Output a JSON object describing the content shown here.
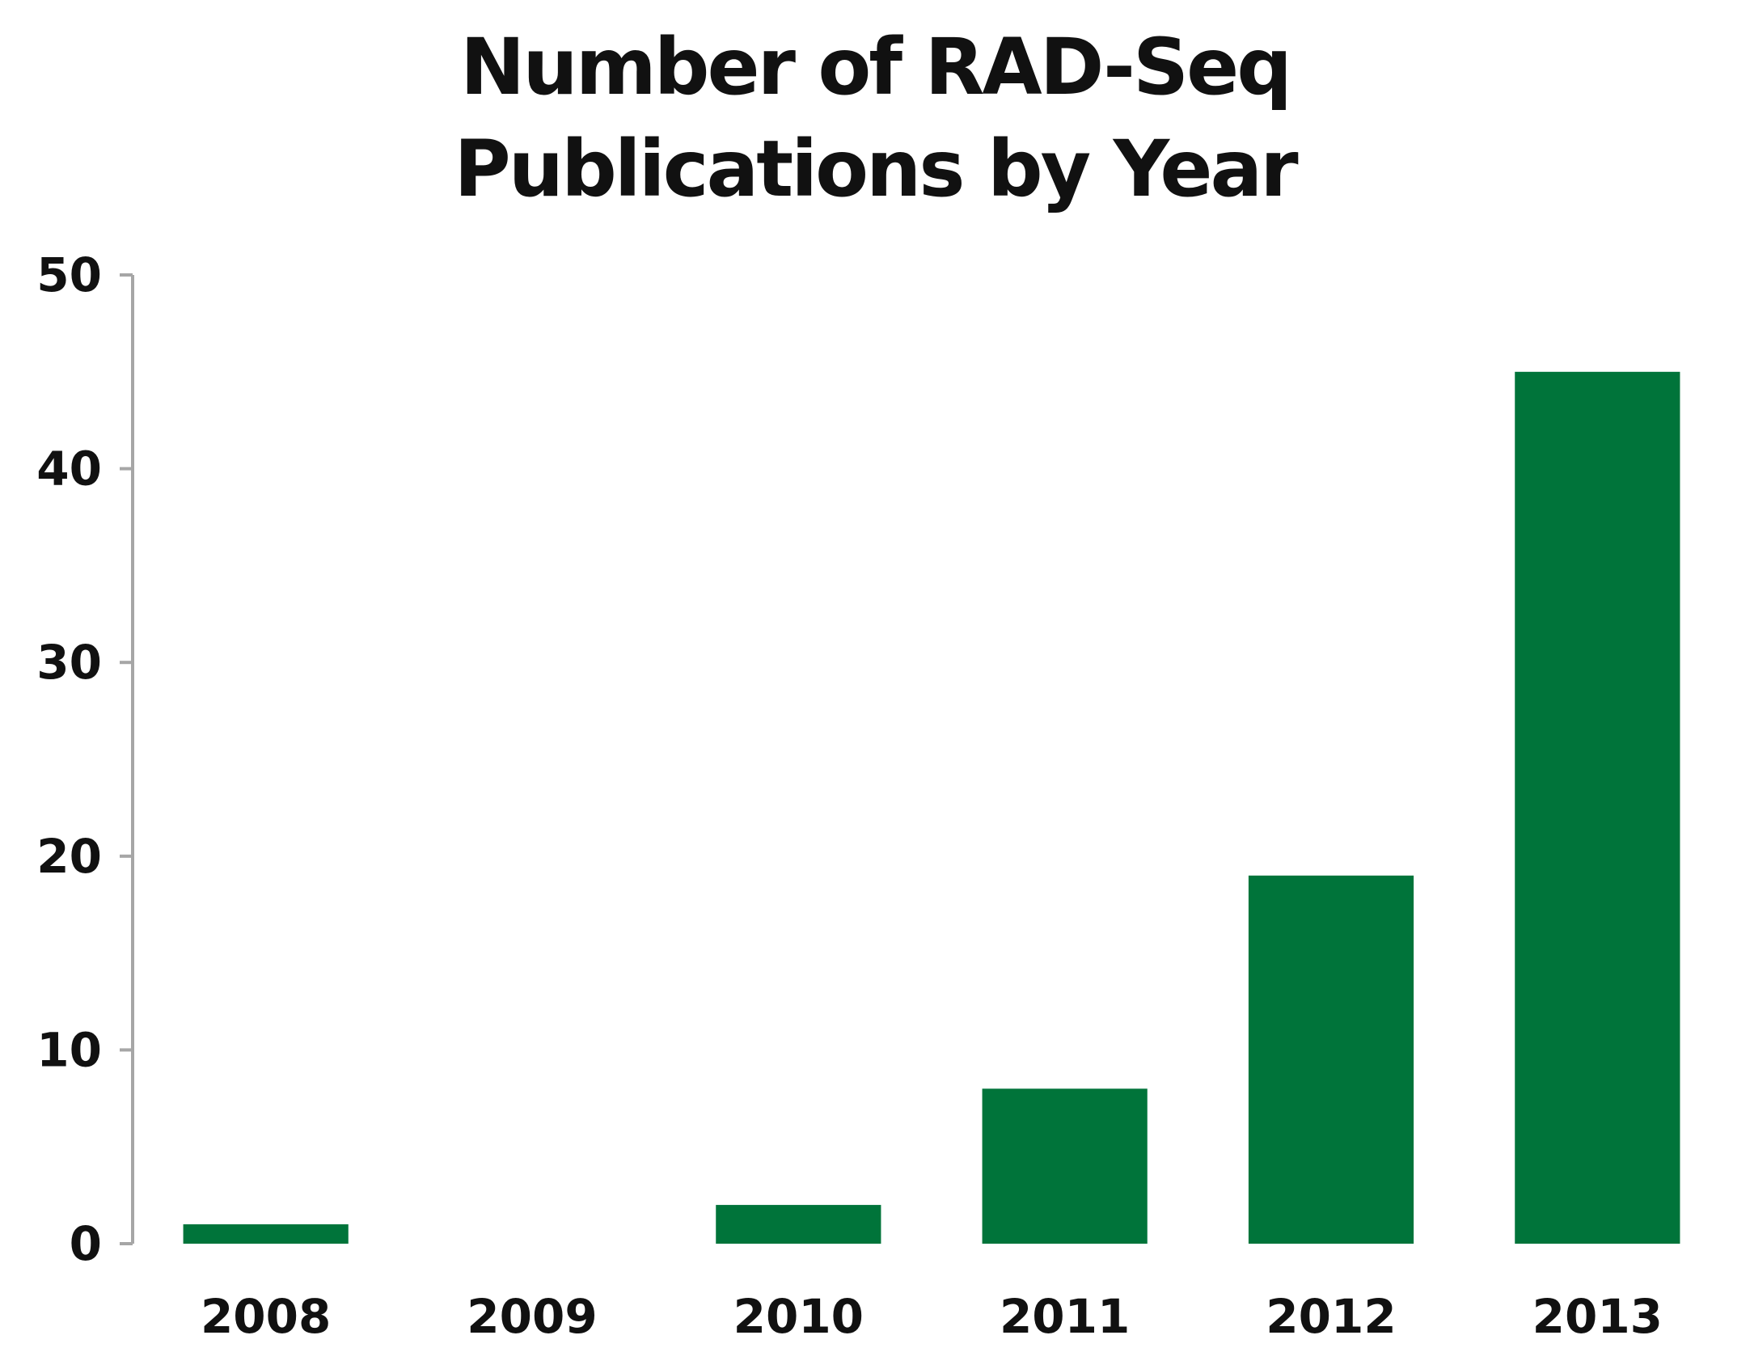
{
  "chart_data": {
    "type": "bar",
    "title": [
      "Number of RAD-Seq",
      "Publications by Year"
    ],
    "xlabel": "",
    "ylabel": "",
    "categories": [
      "2008",
      "2009",
      "2010",
      "2011",
      "2012",
      "2013"
    ],
    "values": [
      1,
      0,
      2,
      8,
      19,
      45
    ],
    "ylim": [
      0,
      50
    ],
    "yticks": [
      "0",
      "10",
      "20",
      "30",
      "40",
      "50"
    ],
    "grid": false,
    "legend": "none",
    "bar_color": "#00743a",
    "axis_color": "#a6a6a6"
  }
}
